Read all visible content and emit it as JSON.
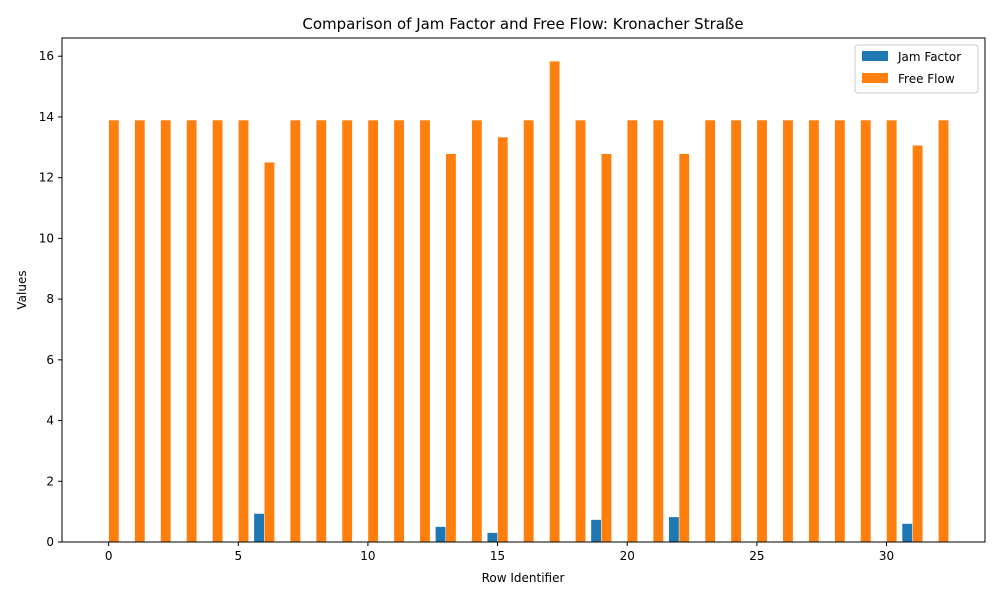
{
  "chart_data": {
    "type": "bar",
    "title": "Comparison of Jam Factor and Free Flow: Kronacher Straße",
    "xlabel": "Row Identifier",
    "ylabel": "Values",
    "x": [
      0,
      1,
      2,
      3,
      4,
      5,
      6,
      7,
      8,
      9,
      10,
      11,
      12,
      13,
      14,
      15,
      16,
      17,
      18,
      19,
      20,
      21,
      22,
      23,
      24,
      25,
      26,
      27,
      28,
      29,
      30,
      31,
      32
    ],
    "x_ticks": [
      0,
      5,
      10,
      15,
      20,
      25,
      30
    ],
    "y_ticks": [
      0,
      2,
      4,
      6,
      8,
      10,
      12,
      14,
      16
    ],
    "xlim": [
      -1.8,
      33.8
    ],
    "ylim": [
      0,
      16.6
    ],
    "grid": false,
    "legend_position": "top-right",
    "series": [
      {
        "name": "Jam Factor",
        "color": "#1f77b4",
        "values": [
          0,
          0,
          0,
          0,
          0,
          0,
          0.93,
          0,
          0,
          0,
          0,
          0,
          0,
          0.5,
          0,
          0.3,
          0,
          0,
          0,
          0.73,
          0,
          0,
          0.82,
          0,
          0,
          0,
          0,
          0,
          0,
          0,
          0,
          0.6,
          0
        ]
      },
      {
        "name": "Free Flow",
        "color": "#ff7f0e",
        "values": [
          13.89,
          13.89,
          13.89,
          13.89,
          13.89,
          13.89,
          12.5,
          13.89,
          13.89,
          13.89,
          13.89,
          13.89,
          13.89,
          12.78,
          13.89,
          13.33,
          13.89,
          15.83,
          13.89,
          12.78,
          13.89,
          13.89,
          12.78,
          13.89,
          13.89,
          13.89,
          13.89,
          13.89,
          13.89,
          13.89,
          13.89,
          13.06,
          13.89
        ]
      }
    ]
  }
}
